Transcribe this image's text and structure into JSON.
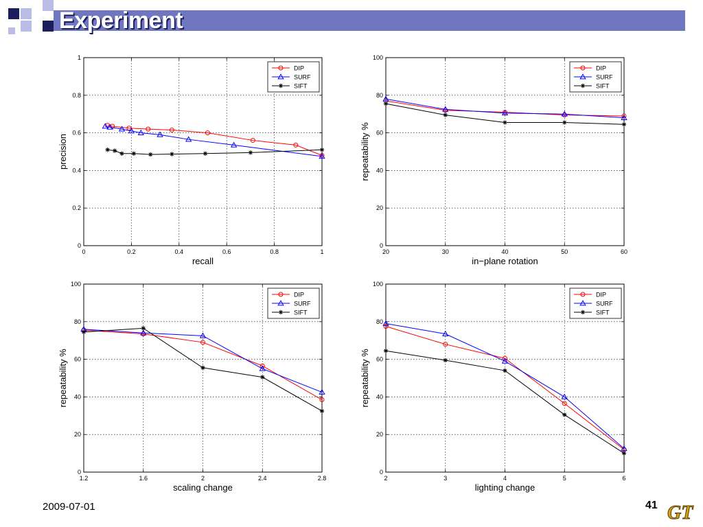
{
  "slide": {
    "title": "Experiment",
    "date": "2009-07-01",
    "page_number": "41",
    "logo_text": "GT",
    "colors": {
      "header": "#7077c1",
      "square_dark": "#1a1f5c",
      "square_light": "#b9bde6",
      "logo_gold": "#d4a017"
    }
  },
  "chart_data": [
    {
      "type": "line",
      "xlabel": "recall",
      "ylabel": "precision",
      "xlim": [
        0,
        1
      ],
      "ylim": [
        0,
        1
      ],
      "xticks": [
        "0",
        "0.2",
        "0.4",
        "0.6",
        "0.8",
        "1"
      ],
      "yticks": [
        "0",
        "0.2",
        "0.4",
        "0.6",
        "0.8",
        "1"
      ],
      "grid": true,
      "legend": "top-right",
      "series": [
        {
          "name": "DIP",
          "color": "#ff0000",
          "marker": "circle",
          "x": [
            0.1,
            0.12,
            0.19,
            0.27,
            0.37,
            0.52,
            0.71,
            0.89,
            1.0
          ],
          "y": [
            0.64,
            0.635,
            0.625,
            0.62,
            0.615,
            0.6,
            0.56,
            0.535,
            0.48
          ]
        },
        {
          "name": "SURF",
          "color": "#0000ff",
          "marker": "triangle",
          "x": [
            0.09,
            0.11,
            0.16,
            0.2,
            0.24,
            0.32,
            0.44,
            0.63,
            1.0
          ],
          "y": [
            0.635,
            0.63,
            0.62,
            0.61,
            0.6,
            0.59,
            0.565,
            0.535,
            0.475
          ]
        },
        {
          "name": "SIFT",
          "color": "#000000",
          "marker": "star",
          "x": [
            0.1,
            0.13,
            0.16,
            0.21,
            0.28,
            0.37,
            0.51,
            0.7,
            1.0
          ],
          "y": [
            0.51,
            0.505,
            0.49,
            0.49,
            0.485,
            0.487,
            0.49,
            0.495,
            0.51
          ]
        }
      ]
    },
    {
      "type": "line",
      "xlabel": "in−plane rotation",
      "ylabel": "repeatability %",
      "xlim": [
        20,
        60
      ],
      "ylim": [
        0,
        100
      ],
      "xticks": [
        "20",
        "30",
        "40",
        "50",
        "60"
      ],
      "yticks": [
        "0",
        "20",
        "40",
        "60",
        "80",
        "100"
      ],
      "grid": true,
      "legend": "top-right",
      "series": [
        {
          "name": "DIP",
          "color": "#ff0000",
          "marker": "circle",
          "x": [
            20,
            30,
            40,
            50,
            60
          ],
          "y": [
            77,
            72,
            71,
            69.5,
            69
          ]
        },
        {
          "name": "SURF",
          "color": "#0000ff",
          "marker": "triangle",
          "x": [
            20,
            30,
            40,
            50,
            60
          ],
          "y": [
            78,
            72.5,
            70.5,
            70,
            68
          ]
        },
        {
          "name": "SIFT",
          "color": "#000000",
          "marker": "star",
          "x": [
            20,
            30,
            40,
            50,
            60
          ],
          "y": [
            75.5,
            69.5,
            65.5,
            65.5,
            64.5
          ]
        }
      ]
    },
    {
      "type": "line",
      "xlabel": "scaling change",
      "ylabel": "repeatability %",
      "xlim": [
        1.2,
        2.8
      ],
      "ylim": [
        0,
        100
      ],
      "xticks": [
        "1.2",
        "1.6",
        "2",
        "2.4",
        "2.8"
      ],
      "yticks": [
        "0",
        "20",
        "40",
        "60",
        "80",
        "100"
      ],
      "grid": true,
      "legend": "top-right",
      "series": [
        {
          "name": "DIP",
          "color": "#ff0000",
          "marker": "circle",
          "x": [
            1.2,
            1.6,
            2.0,
            2.4,
            2.8
          ],
          "y": [
            75.5,
            73.5,
            69,
            56.5,
            38.5
          ]
        },
        {
          "name": "SURF",
          "color": "#0000ff",
          "marker": "triangle",
          "x": [
            1.2,
            1.6,
            2.0,
            2.4,
            2.8
          ],
          "y": [
            76,
            74,
            72.5,
            55,
            42.5
          ]
        },
        {
          "name": "SIFT",
          "color": "#000000",
          "marker": "star",
          "x": [
            1.2,
            1.6,
            2.0,
            2.4,
            2.8
          ],
          "y": [
            74.5,
            76.5,
            55.5,
            50.5,
            32.5
          ]
        }
      ]
    },
    {
      "type": "line",
      "xlabel": "lighting change",
      "ylabel": "repeatability %",
      "xlim": [
        2,
        6
      ],
      "ylim": [
        0,
        100
      ],
      "xticks": [
        "2",
        "3",
        "4",
        "5",
        "6"
      ],
      "yticks": [
        "0",
        "20",
        "40",
        "60",
        "80",
        "100"
      ],
      "grid": true,
      "legend": "top-right",
      "series": [
        {
          "name": "DIP",
          "color": "#ff0000",
          "marker": "circle",
          "x": [
            2,
            3,
            4,
            5,
            6
          ],
          "y": [
            77.5,
            68,
            60.5,
            36.5,
            12
          ]
        },
        {
          "name": "SURF",
          "color": "#0000ff",
          "marker": "triangle",
          "x": [
            2,
            3,
            4,
            5,
            6
          ],
          "y": [
            79,
            73.5,
            59,
            40,
            12.5
          ]
        },
        {
          "name": "SIFT",
          "color": "#000000",
          "marker": "star",
          "x": [
            2,
            3,
            4,
            5,
            6
          ],
          "y": [
            64.5,
            59.5,
            54,
            30.5,
            10
          ]
        }
      ]
    }
  ]
}
